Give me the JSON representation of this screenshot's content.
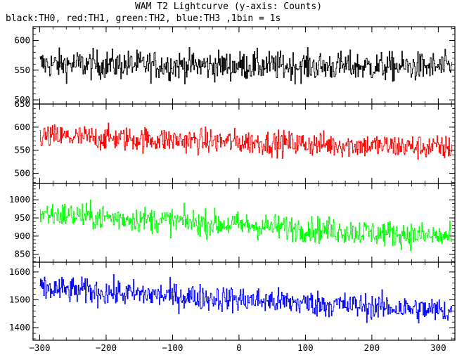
{
  "title": "WAM T2 Lightcurve (y-axis: Counts)",
  "subtitle": "black:TH0, red:TH1, green:TH2, blue:TH3 ,1bin = 1s",
  "chart_data": [
    {
      "type": "line",
      "series_name": "TH0",
      "color": "#000000",
      "xlim": [
        -310,
        325
      ],
      "ylim": [
        493,
        623
      ],
      "yticks": [
        500,
        550,
        600
      ],
      "xticks": [
        -300,
        -200,
        -100,
        0,
        100,
        200,
        300
      ],
      "x_range": [
        -300,
        320
      ],
      "bin": 1,
      "mean_start": 560,
      "mean_end": 555,
      "noise": 22
    },
    {
      "type": "line",
      "series_name": "TH1",
      "color": "#ff0000",
      "xlim": [
        -310,
        325
      ],
      "ylim": [
        478,
        650
      ],
      "yticks": [
        500,
        550,
        600,
        650
      ],
      "xticks": [
        -300,
        -200,
        -100,
        0,
        100,
        200,
        300
      ],
      "x_range": [
        -300,
        320
      ],
      "bin": 1,
      "mean_start": 580,
      "mean_end": 555,
      "noise": 24
    },
    {
      "type": "line",
      "series_name": "TH2",
      "color": "#00ff00",
      "xlim": [
        -310,
        325
      ],
      "ylim": [
        828,
        1045
      ],
      "yticks": [
        850,
        900,
        950,
        1000
      ],
      "xticks": [
        -300,
        -200,
        -100,
        0,
        100,
        200,
        300
      ],
      "x_range": [
        -300,
        320
      ],
      "bin": 1,
      "mean_start": 962,
      "mean_end": 897,
      "noise": 32
    },
    {
      "type": "line",
      "series_name": "TH3",
      "color": "#0000ff",
      "xlim": [
        -310,
        325
      ],
      "ylim": [
        1355,
        1635
      ],
      "yticks": [
        1400,
        1500,
        1600
      ],
      "xticks": [
        -300,
        -200,
        -100,
        0,
        100,
        200,
        300
      ],
      "x_range": [
        -300,
        320
      ],
      "bin": 1,
      "mean_start": 1540,
      "mean_end": 1460,
      "noise": 42
    }
  ]
}
